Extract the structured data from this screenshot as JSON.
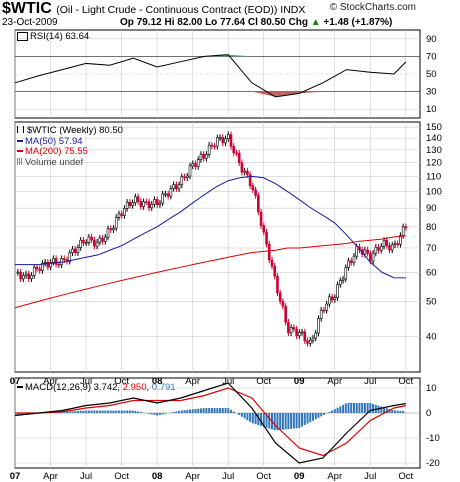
{
  "header": {
    "symbol": "$WTIC",
    "description": "(Oil - Light Crude - Continuous Contract (EOD)) INDX",
    "site": "© StockCharts.com",
    "date": "23-Oct-2009",
    "open_label": "Op",
    "open": "79.12",
    "high_label": "Hi",
    "high": "82.00",
    "low_label": "Lo",
    "low": "77.64",
    "close_label": "Cl",
    "close": "80.50",
    "change_label": "Chg",
    "change": "+1.48 (+1.87%)",
    "up_arrow": "▲"
  },
  "rsi_panel": {
    "legend": "RSI(14) 63.64",
    "y_ticks": [
      "90",
      "70",
      "50",
      "30",
      "10"
    ]
  },
  "price_panel": {
    "legend_main": "$WTIC (Weekly) 80.50",
    "legend_ma50": "MA(50) 57.94",
    "legend_ma200": "MA(200) 75.55",
    "legend_volume": "Volume undef",
    "y_ticks": [
      "150",
      "140",
      "130",
      "120",
      "110",
      "100",
      "90",
      "80",
      "70",
      "60",
      "50",
      "40"
    ]
  },
  "macd_panel": {
    "legend_prefix": "MACD(12,26,9)",
    "macd_value": "3.742",
    "signal_value": "2.950",
    "hist_value": "0.791",
    "y_ticks": [
      "10",
      "0",
      "-10",
      "-20"
    ]
  },
  "x_axis": {
    "labels": [
      "07",
      "Apr",
      "Jul",
      "Oct",
      "08",
      "Apr",
      "Jul",
      "Oct",
      "09",
      "Apr",
      "Jul",
      "Oct"
    ]
  },
  "colors": {
    "price_up": "#000000",
    "price_down": "#cc0033",
    "ma50": "#1a1a99",
    "ma200": "#dd0000",
    "rsi_line": "#000000",
    "rsi_overbought_fill": "#2e8b2e",
    "rsi_oversold_fill": "#b03030",
    "macd_line": "#000000",
    "signal_line": "#dd0000",
    "histogram": "#3377bb",
    "grid": "#cccccc"
  },
  "chart_data": [
    {
      "type": "line",
      "name": "RSI(14)",
      "ylim": [
        0,
        100
      ],
      "x": [
        "2007-01",
        "2007-03",
        "2007-05",
        "2007-07",
        "2007-09",
        "2007-11",
        "2008-01",
        "2008-03",
        "2008-05",
        "2008-07",
        "2008-09",
        "2008-11",
        "2009-01",
        "2009-03",
        "2009-05",
        "2009-07",
        "2009-09",
        "2009-10"
      ],
      "values": [
        40,
        48,
        55,
        62,
        60,
        68,
        58,
        64,
        70,
        72,
        40,
        24,
        28,
        40,
        55,
        52,
        50,
        63.64
      ]
    },
    {
      "type": "line",
      "log_scale": true,
      "ylim": [
        32,
        155
      ],
      "x": [
        "2007-01",
        "2007-02",
        "2007-03",
        "2007-04",
        "2007-05",
        "2007-06",
        "2007-07",
        "2007-08",
        "2007-09",
        "2007-10",
        "2007-11",
        "2007-12",
        "2008-01",
        "2008-02",
        "2008-03",
        "2008-04",
        "2008-05",
        "2008-06",
        "2008-07",
        "2008-08",
        "2008-09",
        "2008-10",
        "2008-11",
        "2008-12",
        "2009-01",
        "2009-02",
        "2009-03",
        "2009-04",
        "2009-05",
        "2009-06",
        "2009-07",
        "2009-08",
        "2009-09",
        "2009-10"
      ],
      "series": [
        {
          "name": "$WTIC (Weekly)",
          "values": [
            60,
            58,
            62,
            64,
            64,
            69,
            74,
            72,
            78,
            88,
            95,
            92,
            93,
            100,
            106,
            118,
            126,
            138,
            140,
            118,
            104,
            76,
            56,
            42,
            41,
            38,
            48,
            52,
            62,
            70,
            66,
            72,
            70,
            80.5
          ]
        },
        {
          "name": "MA(50)",
          "values": [
            63,
            63,
            63,
            63.5,
            64,
            65,
            66,
            67,
            69,
            71,
            74,
            77,
            80,
            84,
            88,
            93,
            98,
            103,
            107,
            109,
            110,
            109,
            105,
            100,
            95,
            90,
            86,
            82,
            76,
            70,
            64,
            60,
            58,
            57.94
          ]
        },
        {
          "name": "MA(200)",
          "values": [
            48,
            49,
            50,
            51,
            52,
            53,
            54,
            55,
            56,
            57,
            58,
            59,
            60,
            61,
            62,
            63,
            64,
            65,
            66,
            67,
            68,
            68.5,
            69,
            70,
            70,
            70.5,
            71,
            71.5,
            72,
            73,
            73.5,
            74,
            75,
            75.55
          ]
        }
      ]
    },
    {
      "type": "line",
      "ylim": [
        -22,
        14
      ],
      "x": [
        "2007-01",
        "2007-03",
        "2007-05",
        "2007-07",
        "2007-09",
        "2007-11",
        "2008-01",
        "2008-03",
        "2008-05",
        "2008-07",
        "2008-09",
        "2008-11",
        "2009-01",
        "2009-03",
        "2009-05",
        "2009-07",
        "2009-09",
        "2009-10"
      ],
      "series": [
        {
          "name": "MACD",
          "values": [
            -1,
            0,
            1,
            3,
            4,
            6,
            4,
            6,
            9,
            12,
            2,
            -12,
            -20,
            -18,
            -8,
            1,
            3,
            3.742
          ]
        },
        {
          "name": "Signal",
          "values": [
            0,
            0,
            0.5,
            2,
            3,
            5,
            5,
            5,
            7,
            10,
            6,
            -5,
            -14,
            -17,
            -12,
            -3,
            2,
            2.95
          ]
        },
        {
          "name": "Histogram",
          "values": [
            -1,
            0,
            0.5,
            1,
            1,
            1,
            -1,
            1,
            2,
            2,
            -4,
            -7,
            -6,
            -1,
            4,
            4,
            1,
            0.791
          ]
        }
      ]
    }
  ]
}
